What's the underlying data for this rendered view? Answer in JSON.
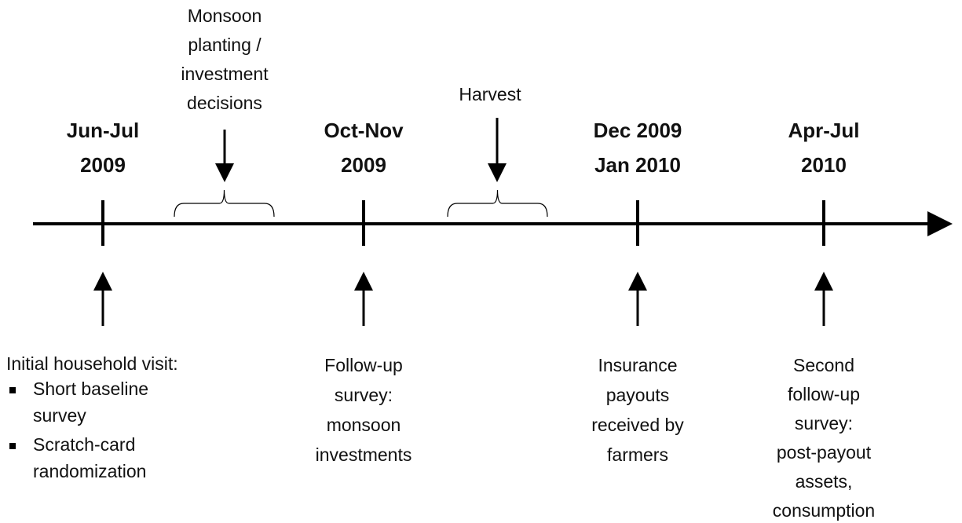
{
  "periods": [
    {
      "label": [
        "Monsoon",
        "planting /",
        "investment",
        "decisions"
      ]
    },
    {
      "label": [
        "Harvest"
      ]
    }
  ],
  "milestones": [
    {
      "date": [
        "Jun-Jul",
        "2009"
      ],
      "description": [
        "Initial household visit:"
      ],
      "bullets": [
        [
          "Short baseline",
          "survey"
        ],
        [
          "Scratch-card",
          "randomization"
        ]
      ]
    },
    {
      "date": [
        "Oct-Nov",
        "2009"
      ],
      "description": [
        "Follow-up",
        "survey:",
        "monsoon",
        "investments"
      ]
    },
    {
      "date": [
        "Dec 2009",
        "Jan 2010"
      ],
      "description": [
        "Insurance",
        "payouts",
        "received by",
        "farmers"
      ]
    },
    {
      "date": [
        "Apr-Jul",
        "2010"
      ],
      "description": [
        "Second",
        "follow-up",
        "survey:",
        "post-payout",
        "assets,",
        "consumption"
      ]
    }
  ]
}
